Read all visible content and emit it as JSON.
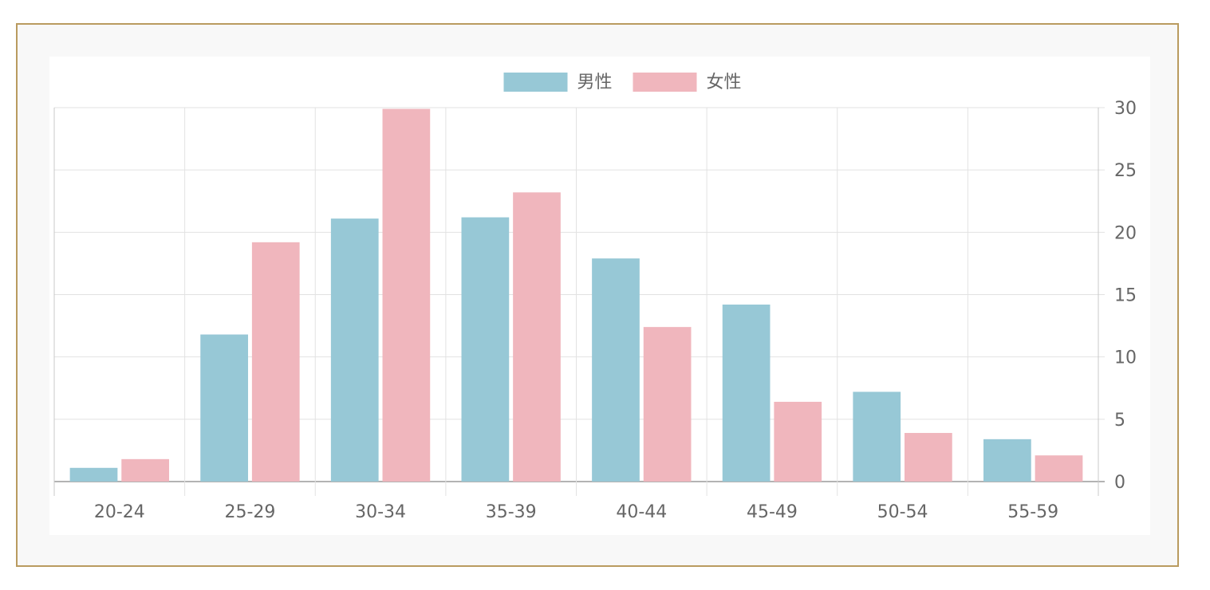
{
  "chart_data": {
    "type": "bar",
    "categories": [
      "20-24",
      "25-29",
      "30-34",
      "35-39",
      "40-44",
      "45-49",
      "50-54",
      "55-59"
    ],
    "series": [
      {
        "name": "男性",
        "color": "#97c8d6",
        "values": [
          1.1,
          11.8,
          21.1,
          21.2,
          17.9,
          14.2,
          7.2,
          3.4
        ]
      },
      {
        "name": "女性",
        "color": "#f0b6bd",
        "values": [
          1.8,
          19.2,
          29.9,
          23.2,
          12.4,
          6.4,
          3.9,
          2.1
        ]
      }
    ],
    "yticks": [
      "0",
      "5",
      "10",
      "15",
      "20",
      "25",
      "30"
    ],
    "ylim": [
      0,
      30
    ],
    "y_axis_position": "right",
    "legend_position": "top-center",
    "grid": true
  }
}
